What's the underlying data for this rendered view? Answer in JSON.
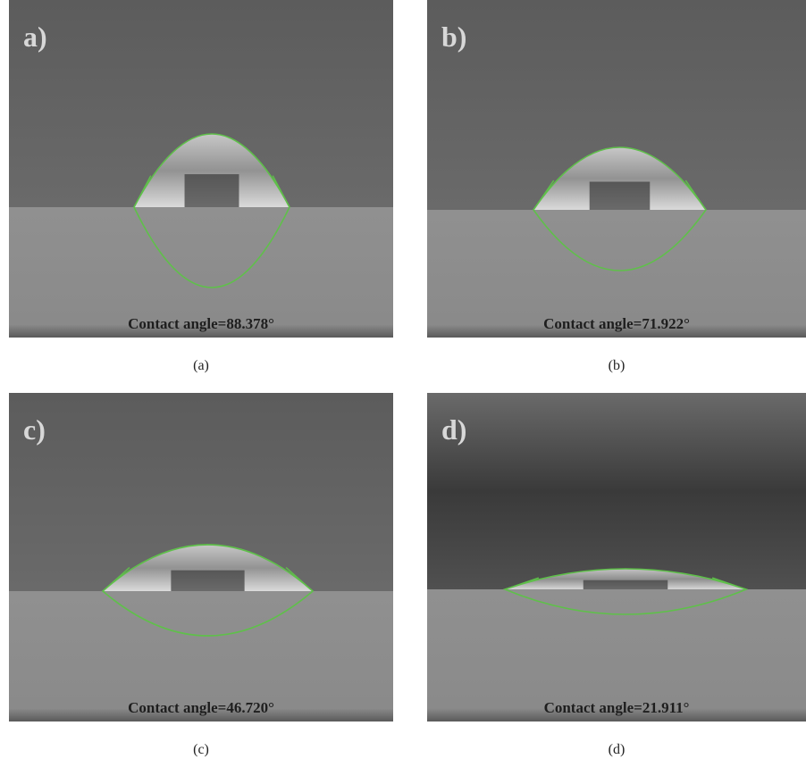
{
  "panels": [
    {
      "tag": "a)",
      "measurement": "Contact angle=88.378°",
      "caption": "(a)"
    },
    {
      "tag": "b)",
      "measurement": "Contact angle=71.922°",
      "caption": "(b)"
    },
    {
      "tag": "c)",
      "measurement": "Contact angle=46.720°",
      "caption": "(c)"
    },
    {
      "tag": "d)",
      "measurement": "Contact angle=21.911°",
      "caption": "(d)"
    }
  ]
}
